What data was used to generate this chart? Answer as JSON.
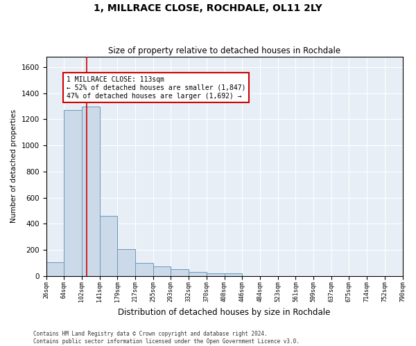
{
  "title": "1, MILLRACE CLOSE, ROCHDALE, OL11 2LY",
  "subtitle": "Size of property relative to detached houses in Rochdale",
  "xlabel": "Distribution of detached houses by size in Rochdale",
  "ylabel": "Number of detached properties",
  "property_size": 113,
  "annotation_line1": "1 MILLRACE CLOSE: 113sqm",
  "annotation_line2": "← 52% of detached houses are smaller (1,847)",
  "annotation_line3": "47% of detached houses are larger (1,692) →",
  "footnote": "Contains HM Land Registry data © Crown copyright and database right 2024.\nContains public sector information licensed under the Open Government Licence v3.0.",
  "bar_color": "#ccd9e8",
  "bar_edge_color": "#6699bb",
  "vline_color": "#cc0000",
  "annotation_box_edge": "#cc0000",
  "background_color": "#e8eef5",
  "bin_edges": [
    26,
    64,
    102,
    141,
    179,
    217,
    255,
    293,
    332,
    370,
    408,
    446,
    484,
    523,
    561,
    599,
    637,
    675,
    714,
    752,
    790
  ],
  "bin_labels": [
    "26sqm",
    "64sqm",
    "102sqm",
    "141sqm",
    "179sqm",
    "217sqm",
    "255sqm",
    "293sqm",
    "332sqm",
    "370sqm",
    "408sqm",
    "446sqm",
    "484sqm",
    "523sqm",
    "561sqm",
    "599sqm",
    "637sqm",
    "675sqm",
    "714sqm",
    "752sqm",
    "790sqm"
  ],
  "counts": [
    103,
    1270,
    1300,
    460,
    205,
    100,
    70,
    50,
    30,
    20,
    20,
    0,
    0,
    0,
    0,
    0,
    0,
    0,
    0,
    0
  ],
  "ylim": [
    0,
    1680
  ],
  "yticks": [
    0,
    200,
    400,
    600,
    800,
    1000,
    1200,
    1400,
    1600
  ]
}
